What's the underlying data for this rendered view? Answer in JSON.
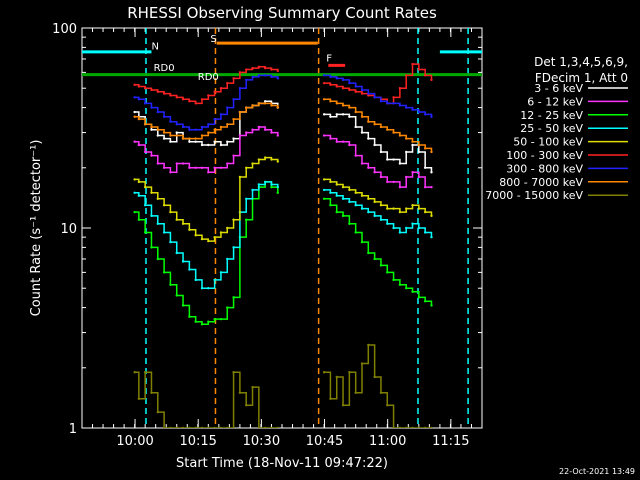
{
  "chart_data": {
    "type": "line",
    "title": "RHESSI Observing Summary Count Rates",
    "xlabel": "Start Time (18-Nov-11 09:47:22)",
    "ylabel": "Count Rate (s⁻¹ detector⁻¹)",
    "x_unit": "minutes after 09:47:22 UT",
    "xlim": [
      0,
      95
    ],
    "ylim": [
      1,
      100
    ],
    "yscale": "log",
    "x_ticks": [
      {
        "x": 12.6,
        "label": "10:00"
      },
      {
        "x": 27.6,
        "label": "10:15"
      },
      {
        "x": 42.6,
        "label": "10:30"
      },
      {
        "x": 57.6,
        "label": "10:45"
      },
      {
        "x": 72.6,
        "label": "11:00"
      },
      {
        "x": 87.6,
        "label": "11:15"
      }
    ],
    "y_ticks": [
      {
        "y": 1,
        "label": "1"
      },
      {
        "y": 10,
        "label": "10"
      },
      {
        "y": 100,
        "label": "100"
      }
    ],
    "legend": {
      "placement": "right",
      "header": [
        "Det 1,3,4,5,6,9,",
        "FDecim 1, Att 0"
      ]
    },
    "series": [
      {
        "name": "3 - 6 keV",
        "color": "#ffffff",
        "x": [
          12.5,
          13.5,
          15,
          16.5,
          18,
          19.5,
          21,
          22.5,
          24,
          25.5,
          27,
          28.5,
          30,
          31.5,
          33,
          34.5,
          36,
          37.5,
          39,
          40.5,
          42,
          43.5,
          45,
          46.5,
          57.5,
          59,
          60.5,
          62,
          63.5,
          65,
          66.5,
          68,
          69.5,
          71,
          72.5,
          74,
          75.5,
          77,
          78.5,
          80,
          81.5,
          83
        ],
        "y": [
          38,
          36,
          33,
          31,
          29,
          28,
          27,
          30,
          28,
          27,
          27,
          26,
          26,
          27,
          26,
          27,
          28,
          38,
          40,
          41,
          42,
          43,
          42,
          40,
          37,
          36,
          37,
          37,
          36,
          32,
          30,
          28,
          26,
          24,
          22,
          22,
          21,
          24,
          26,
          24,
          20,
          19
        ]
      },
      {
        "name": "6 - 12 keV",
        "color": "#ff33ff",
        "x": [
          12.5,
          13.5,
          15,
          16.5,
          18,
          19.5,
          21,
          22.5,
          24,
          25.5,
          27,
          28.5,
          30,
          31.5,
          33,
          34.5,
          36,
          37.5,
          39,
          40.5,
          42,
          43.5,
          45,
          46.5,
          57.5,
          59,
          60.5,
          62,
          63.5,
          65,
          66.5,
          68,
          69.5,
          71,
          72.5,
          74,
          75.5,
          77,
          78.5,
          80,
          81.5,
          83
        ],
        "y": [
          27,
          26,
          24,
          23,
          21,
          20,
          19,
          21,
          21,
          20,
          20,
          20,
          19,
          20,
          20,
          21,
          23,
          29,
          30,
          31,
          32,
          31,
          30,
          29,
          29,
          28,
          27,
          27,
          26,
          23,
          21,
          20,
          19,
          18,
          17,
          17,
          16,
          18,
          19,
          18,
          16,
          16
        ]
      },
      {
        "name": "12 - 25 keV",
        "color": "#00ff00",
        "x": [
          12.5,
          13.5,
          15,
          16.5,
          18,
          19.5,
          21,
          22.5,
          24,
          25.5,
          27,
          28.5,
          30,
          31.5,
          33,
          34.5,
          36,
          37.5,
          39,
          40.5,
          42,
          43.5,
          45,
          46.5,
          57.5,
          59,
          60.5,
          62,
          63.5,
          65,
          66.5,
          68,
          69.5,
          71,
          72.5,
          74,
          75.5,
          77,
          78.5,
          80,
          81.5,
          83
        ],
        "y": [
          12,
          11,
          9.5,
          8,
          7,
          6,
          5.2,
          4.6,
          4.1,
          3.6,
          3.4,
          3.3,
          3.4,
          3.5,
          3.5,
          4,
          4.5,
          9,
          11,
          14,
          16,
          17,
          16,
          15,
          14,
          13,
          12,
          11.5,
          10.5,
          9.5,
          8.5,
          7.5,
          7,
          6.5,
          6,
          5.5,
          5.2,
          5,
          4.8,
          4.5,
          4.3,
          4.1
        ]
      },
      {
        "name": "25 - 50 keV",
        "color": "#00ffff",
        "x": [
          12.5,
          13.5,
          15,
          16.5,
          18,
          19.5,
          21,
          22.5,
          24,
          25.5,
          27,
          28.5,
          30,
          31.5,
          33,
          34.5,
          36,
          37.5,
          39,
          40.5,
          42,
          43.5,
          45,
          46.5,
          57.5,
          59,
          60.5,
          62,
          63.5,
          65,
          66.5,
          68,
          69.5,
          71,
          72.5,
          74,
          75.5,
          77,
          78.5,
          80,
          81.5,
          83
        ],
        "y": [
          15,
          14.5,
          13,
          11.5,
          10.5,
          9.5,
          8.5,
          7.5,
          6.8,
          6.2,
          5.5,
          5,
          5,
          5.5,
          6,
          7,
          8,
          12,
          14,
          15.5,
          16.5,
          17,
          16.5,
          16,
          15.5,
          15,
          14.5,
          14,
          13.5,
          13,
          12.5,
          12,
          11.5,
          11,
          10.5,
          10,
          9.5,
          10,
          10.5,
          10,
          9.5,
          9
        ]
      },
      {
        "name": "50 - 100 keV",
        "color": "#dddd00",
        "x": [
          12.5,
          13.5,
          15,
          16.5,
          18,
          19.5,
          21,
          22.5,
          24,
          25.5,
          27,
          28.5,
          30,
          31.5,
          33,
          34.5,
          36,
          37.5,
          39,
          40.5,
          42,
          43.5,
          45,
          46.5,
          57.5,
          59,
          60.5,
          62,
          63.5,
          65,
          66.5,
          68,
          69.5,
          71,
          72.5,
          74,
          75.5,
          77,
          78.5,
          80,
          81.5,
          83
        ],
        "y": [
          17.5,
          17,
          16,
          15,
          14,
          13,
          12,
          11,
          10.5,
          9.8,
          9.2,
          8.8,
          8.6,
          9,
          9.5,
          10,
          11,
          18,
          20,
          21,
          22,
          22.5,
          22,
          21.5,
          17.5,
          17,
          16.5,
          16,
          15.5,
          15,
          14.5,
          14,
          13.5,
          13,
          12.5,
          12.5,
          12,
          12.5,
          13,
          12.5,
          12,
          11.5
        ]
      },
      {
        "name": "100 - 300 keV",
        "color": "#ff2222",
        "x": [
          12.5,
          13.5,
          15,
          16.5,
          18,
          19.5,
          21,
          22.5,
          24,
          25.5,
          27,
          28.5,
          30,
          31.5,
          33,
          34.5,
          36,
          37.5,
          39,
          40.5,
          42,
          43.5,
          45,
          46.5,
          57.5,
          59,
          60.5,
          62,
          63.5,
          65,
          66.5,
          68,
          69.5,
          71,
          72.5,
          74,
          75.5,
          77,
          78.5,
          80,
          81.5,
          83
        ],
        "y": [
          52,
          51,
          50,
          49,
          48,
          47,
          46,
          45,
          44,
          43,
          42,
          44,
          46,
          48,
          50,
          53,
          56,
          60,
          62,
          63,
          64,
          63,
          62,
          61,
          53,
          52,
          51,
          50,
          49,
          48,
          47,
          46,
          45,
          44,
          42,
          45,
          50,
          58,
          66,
          62,
          58,
          55
        ]
      },
      {
        "name": "300 - 800 keV",
        "color": "#2222ff",
        "x": [
          12.5,
          13.5,
          15,
          16.5,
          18,
          19.5,
          21,
          22.5,
          24,
          25.5,
          27,
          28.5,
          30,
          31.5,
          33,
          34.5,
          36,
          37.5,
          39,
          40.5,
          42,
          43.5,
          45,
          46.5,
          57.5,
          59,
          60.5,
          62,
          63.5,
          65,
          66.5,
          68,
          69.5,
          71,
          72.5,
          74,
          75.5,
          77,
          78.5,
          80,
          81.5,
          83
        ],
        "y": [
          45,
          44,
          42,
          40,
          38,
          36,
          34,
          33,
          32,
          31,
          31,
          32,
          33,
          35,
          37,
          40,
          44,
          50,
          55,
          57,
          58,
          58,
          57,
          56,
          58,
          57,
          56,
          55,
          53,
          51,
          49,
          47,
          45,
          43,
          42,
          42,
          41,
          40,
          39,
          38,
          37,
          36
        ]
      },
      {
        "name": "800 - 7000 keV",
        "color": "#ff8800",
        "x": [
          12.5,
          13.5,
          15,
          16.5,
          18,
          19.5,
          21,
          22.5,
          24,
          25.5,
          27,
          28.5,
          30,
          31.5,
          33,
          34.5,
          36,
          37.5,
          39,
          40.5,
          42,
          43.5,
          45,
          46.5,
          57.5,
          59,
          60.5,
          62,
          63.5,
          65,
          66.5,
          68,
          69.5,
          71,
          72.5,
          74,
          75.5,
          77,
          78.5,
          80,
          81.5,
          83
        ],
        "y": [
          36,
          35,
          33,
          32,
          31,
          30,
          29,
          29,
          28,
          28,
          28,
          29,
          30,
          31,
          32,
          33,
          35,
          38,
          40,
          41,
          42,
          42,
          41,
          40,
          44,
          43,
          42,
          41,
          40,
          38,
          36,
          34,
          33,
          32,
          31,
          30,
          29,
          28,
          27,
          26,
          25,
          24
        ]
      },
      {
        "name": "7000 - 15000 keV",
        "color": "#808000",
        "x": [
          12.5,
          13.5,
          15,
          16.5,
          18,
          19.5,
          21,
          22.5,
          24,
          25.5,
          27,
          28.5,
          30,
          31.5,
          33,
          34.5,
          36,
          37.5,
          39,
          40.5,
          42,
          43.5,
          45,
          46.5,
          57.5,
          59,
          60.5,
          62,
          63.5,
          65,
          66.5,
          68,
          69.5,
          71,
          72.5,
          74,
          75.5,
          77,
          78.5,
          80,
          81.5,
          83
        ],
        "y": [
          1.9,
          1.4,
          1.9,
          1.5,
          1.2,
          1,
          1,
          1,
          1,
          1,
          1,
          1,
          1,
          1,
          1,
          1,
          1.9,
          1.5,
          1.3,
          1.6,
          1,
          1,
          1,
          1,
          1.9,
          1.4,
          1.8,
          1.3,
          1.9,
          1.5,
          2.1,
          2.6,
          1.8,
          1.5,
          1.3,
          1,
          1,
          1,
          1,
          1,
          1,
          1
        ]
      }
    ],
    "annotations": [
      {
        "text": "N",
        "color": "#00ffff",
        "x": 16.5,
        "y": 78
      },
      {
        "text": "RD0",
        "color": "#00cc00",
        "x": 17,
        "y": 61
      },
      {
        "text": "RD0",
        "color": "#00cc00",
        "x": 27.5,
        "y": 55
      },
      {
        "text": "S",
        "color": "#ff8800",
        "x": 30.5,
        "y": 85
      },
      {
        "text": "F",
        "color": "#ff2222",
        "x": 58,
        "y": 68
      }
    ],
    "flags": [
      {
        "name": "night",
        "color": "#00ffff",
        "y": 76,
        "segments": [
          [
            0,
            16.5
          ],
          [
            85,
            95
          ]
        ]
      },
      {
        "name": "saa",
        "color": "#ff8800",
        "y": 84,
        "segments": [
          [
            32,
            56
          ]
        ]
      },
      {
        "name": "flare",
        "color": "#ff2222",
        "y": 65,
        "segments": [
          [
            58.5,
            62.5
          ]
        ]
      },
      {
        "name": "attenuator-state",
        "color": "#00aa00",
        "y": 58.5,
        "segments": [
          [
            0,
            95
          ]
        ]
      }
    ],
    "vlines": [
      {
        "x": 15.2,
        "color": "#00ffff"
      },
      {
        "x": 31.7,
        "color": "#ff8800"
      },
      {
        "x": 56.2,
        "color": "#ff8800"
      },
      {
        "x": 79.8,
        "color": "#00ffff"
      },
      {
        "x": 91.7,
        "color": "#00ffff"
      }
    ]
  },
  "footer": {
    "timestamp": "22-Oct-2021 13:49"
  }
}
